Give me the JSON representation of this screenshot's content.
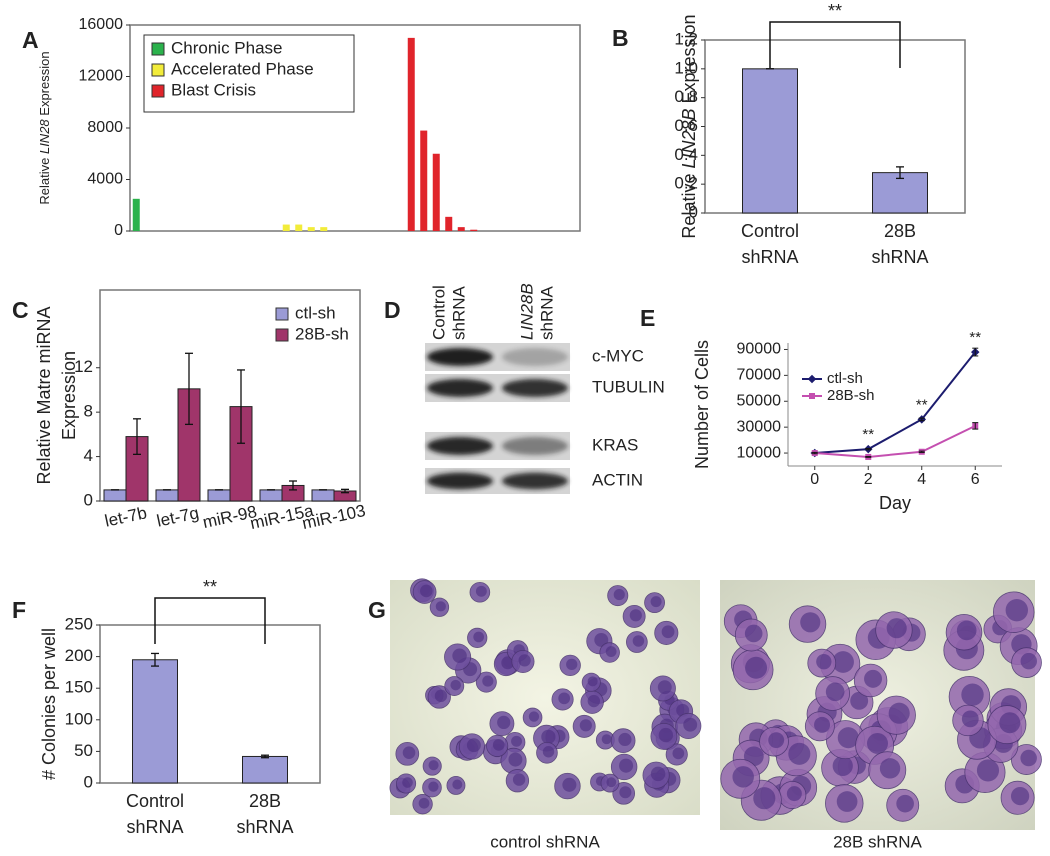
{
  "chart_data": [
    {
      "type": "bar",
      "panel": "A",
      "ylabel": [
        "Relative ",
        {
          "text": "LIN28",
          "style": "italic"
        },
        " Expression"
      ],
      "categories": [
        null,
        null,
        null,
        null,
        null,
        null,
        null,
        null,
        null,
        null,
        null,
        null,
        null,
        null,
        null,
        null,
        null,
        null,
        null,
        null,
        null,
        null,
        null,
        null,
        null,
        null,
        null,
        null,
        null,
        null,
        null,
        null,
        null,
        null,
        null,
        null
      ],
      "series": [
        {
          "name": "Chronic Phase",
          "color": "#2bb24c",
          "values": [
            2500,
            0,
            0,
            0,
            0,
            0,
            0,
            0,
            0,
            0,
            0,
            0,
            null,
            null,
            null,
            null,
            null,
            null,
            null,
            null,
            null,
            null,
            null,
            null,
            null,
            null,
            null,
            null,
            null,
            null,
            null,
            null,
            null,
            null,
            null,
            null
          ]
        },
        {
          "name": "Accelerated Phase",
          "color": "#f2ec3a",
          "values": [
            null,
            null,
            null,
            null,
            null,
            null,
            null,
            null,
            null,
            null,
            null,
            null,
            500,
            500,
            300,
            300,
            0,
            0,
            0,
            0,
            0,
            0,
            null,
            null,
            null,
            null,
            null,
            null,
            null,
            null,
            null,
            null,
            null,
            null,
            null,
            null
          ]
        },
        {
          "name": "Blast Crisis",
          "color": "#e0242b",
          "values": [
            null,
            null,
            null,
            null,
            null,
            null,
            null,
            null,
            null,
            null,
            null,
            null,
            null,
            null,
            null,
            null,
            null,
            null,
            null,
            null,
            null,
            null,
            15000,
            7800,
            6000,
            1100,
            300,
            100,
            0,
            0,
            0,
            0,
            0,
            0,
            0,
            0
          ]
        }
      ],
      "ylim": [
        0,
        16000
      ],
      "yticks": [
        0,
        4000,
        8000,
        12000,
        16000
      ],
      "frame": true,
      "legend": "upper left"
    },
    {
      "type": "bar",
      "panel": "B",
      "ylabel": [
        "Relative ",
        {
          "text": "LIN28B",
          "style": "italic"
        },
        " Expression"
      ],
      "categories": [
        [
          "Control",
          "shRNA"
        ],
        [
          "28B",
          "shRNA"
        ]
      ],
      "values": [
        1.0,
        0.28
      ],
      "errors": [
        0,
        0.04
      ],
      "color": "#9b9bd6",
      "ylim": [
        0,
        1.2
      ],
      "yticks": [
        0,
        0.2,
        0.4,
        0.6,
        0.8,
        {
          "value": 1.0,
          "label": "1.0"
        },
        1.2
      ],
      "frame": true,
      "annotation": "**"
    },
    {
      "type": "bar",
      "panel": "C",
      "ylabel_lines": [
        "Relative Matre miRNA",
        "Expression"
      ],
      "categories": [
        "let-7b",
        "let-7g",
        "miR-98",
        "miR-15a",
        "miR-103"
      ],
      "series": [
        {
          "name": "ctl-sh",
          "color": "#9b9bd6",
          "values": [
            1,
            1,
            1,
            1,
            1
          ],
          "errors": [
            0,
            0,
            0,
            0,
            0
          ]
        },
        {
          "name": "28B-sh",
          "color": "#a0356a",
          "values": [
            5.8,
            10.1,
            8.5,
            1.4,
            0.9
          ],
          "errors": [
            1.6,
            3.2,
            3.3,
            0.4,
            0.15
          ]
        }
      ],
      "ylim": [
        0,
        19
      ],
      "yticks": [
        0,
        4,
        8,
        12
      ],
      "frame": true,
      "legend": "upper right"
    },
    {
      "type": "line",
      "panel": "E",
      "ylabel": [
        "Number of Cells"
      ],
      "xlabel": "Day",
      "x": [
        0,
        2,
        4,
        6
      ],
      "series": [
        {
          "name": "ctl-sh",
          "color": "#1c1c6e",
          "values": [
            10000,
            13000,
            36000,
            88000
          ],
          "errors": [
            500,
            500,
            1000,
            3000
          ]
        },
        {
          "name": "28B-sh",
          "color": "#c44fb0",
          "values": [
            10000,
            7000,
            11000,
            31000
          ],
          "errors": [
            500,
            300,
            500,
            2500
          ]
        }
      ],
      "xlim": [
        -1,
        7
      ],
      "xticks": [
        0,
        2,
        4,
        6
      ],
      "ylim": [
        0,
        95000
      ],
      "yticks": [
        10000,
        30000,
        50000,
        70000,
        90000
      ],
      "annotations": [
        {
          "x": 2,
          "text": "**"
        },
        {
          "x": 4,
          "text": "**"
        },
        {
          "x": 6,
          "text": "**"
        }
      ],
      "frame": false,
      "legend": "upper left"
    },
    {
      "type": "bar",
      "panel": "F",
      "ylabel": [
        "# Colonies per well"
      ],
      "categories": [
        [
          "Control",
          "shRNA"
        ],
        [
          "28B",
          "shRNA"
        ]
      ],
      "values": [
        195,
        42
      ],
      "errors": [
        10,
        2
      ],
      "color": "#9b9bd6",
      "ylim": [
        0,
        250
      ],
      "yticks": [
        0,
        50,
        100,
        150,
        200,
        250
      ],
      "frame": true,
      "annotation": "**"
    }
  ],
  "blot": {
    "panel": "D",
    "lanes": [
      [
        "Control",
        "shRNA"
      ],
      [
        {
          "text": "LIN28B",
          "style": "italic"
        },
        "shRNA"
      ]
    ],
    "bands": [
      "c-MYC",
      "TUBULIN",
      "KRAS",
      "ACTIN"
    ]
  },
  "images": {
    "panel": "G",
    "captions": [
      "control shRNA",
      "28B shRNA"
    ]
  }
}
